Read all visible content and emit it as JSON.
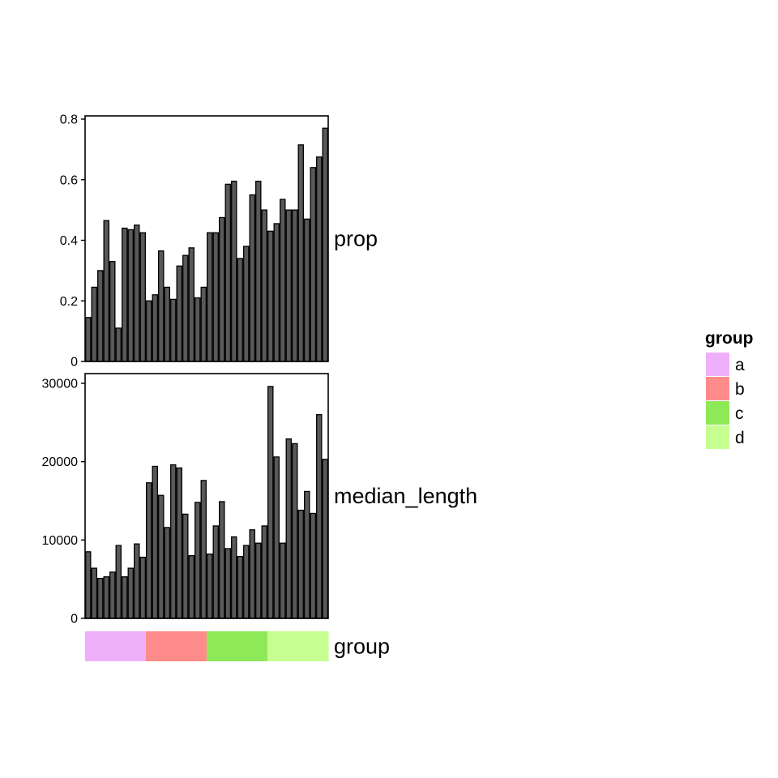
{
  "chart_data": {
    "type": "bar",
    "facets": [
      {
        "label": "prop",
        "ylim": [
          0,
          0.8
        ],
        "ticks": [
          0,
          0.2,
          0.4,
          0.6,
          0.8
        ],
        "tick_labels": [
          "0",
          "0.2",
          "0.4",
          "0.6",
          "0.8"
        ],
        "values": [
          0.145,
          0.245,
          0.3,
          0.465,
          0.33,
          0.11,
          0.44,
          0.435,
          0.45,
          0.425,
          0.2,
          0.22,
          0.365,
          0.245,
          0.205,
          0.315,
          0.35,
          0.375,
          0.21,
          0.245,
          0.425,
          0.425,
          0.475,
          0.585,
          0.595,
          0.34,
          0.38,
          0.55,
          0.595,
          0.5,
          0.43,
          0.455,
          0.535,
          0.5,
          0.5,
          0.715,
          0.47,
          0.64,
          0.675,
          0.77
        ]
      },
      {
        "label": "median_length",
        "ylim": [
          0,
          30000
        ],
        "ticks": [
          0,
          10000,
          20000,
          30000
        ],
        "tick_labels": [
          "0",
          "10000",
          "20000",
          "30000"
        ],
        "values": [
          8500,
          6400,
          5100,
          5300,
          5900,
          9300,
          5300,
          6400,
          9500,
          7800,
          17300,
          19400,
          15700,
          11600,
          19600,
          19200,
          13300,
          8000,
          14800,
          17600,
          8200,
          11800,
          14900,
          8900,
          10400,
          7900,
          9300,
          11300,
          9600,
          11800,
          29600,
          20600,
          9600,
          22900,
          22300,
          13800,
          16200,
          13400,
          26000,
          20300
        ]
      }
    ],
    "group_strip": {
      "label": "group",
      "groups": [
        "a",
        "b",
        "c",
        "d"
      ],
      "counts": [
        10,
        10,
        10,
        10
      ]
    },
    "legend": {
      "title": "group",
      "position": "right",
      "items": [
        {
          "label": "a",
          "color": "#EFB0FB"
        },
        {
          "label": "b",
          "color": "#FF8C8A"
        },
        {
          "label": "c",
          "color": "#8DE958"
        },
        {
          "label": "d",
          "color": "#C6FF8F"
        }
      ]
    },
    "bar_fill": "#595959",
    "bar_stroke": "#000000",
    "grid": false
  }
}
